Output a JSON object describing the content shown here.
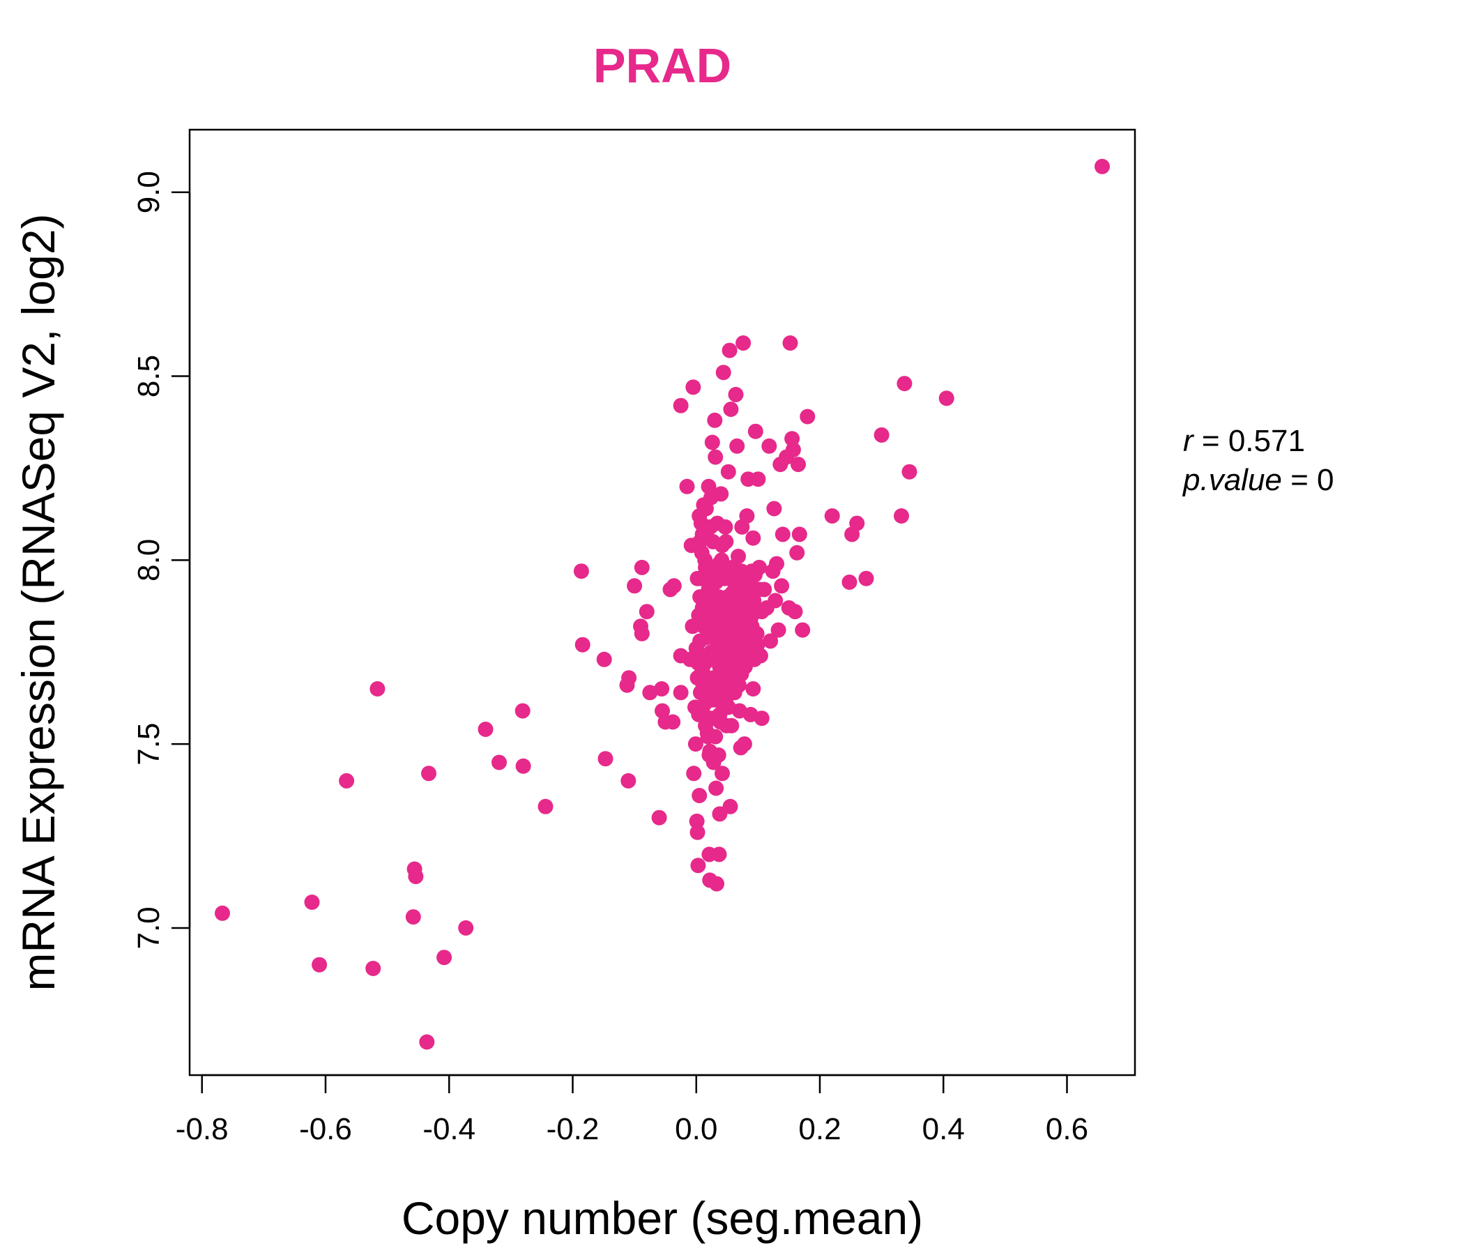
{
  "colors": {
    "accent": "#E6298A",
    "axis": "#000000",
    "background": "#FFFFFF"
  },
  "chart_data": {
    "type": "scatter",
    "title": "PRAD",
    "xlabel": "Copy number (seg.mean)",
    "ylabel": "mRNA Expression (RNASeq V2, log2)",
    "xlim": [
      -0.82,
      0.71
    ],
    "ylim": [
      6.6,
      9.17
    ],
    "xticks": [
      -0.8,
      -0.6,
      -0.4,
      -0.2,
      0.0,
      0.2,
      0.4,
      0.6
    ],
    "xtick_labels": [
      "-0.8",
      "-0.6",
      "-0.4",
      "-0.2",
      "0.0",
      "0.2",
      "0.4",
      "0.6"
    ],
    "yticks": [
      7.0,
      7.5,
      8.0,
      8.5,
      9.0
    ],
    "ytick_labels": [
      "7.0",
      "7.5",
      "8.0",
      "8.5",
      "9.0"
    ],
    "grid": false,
    "legend": "none",
    "annotations": {
      "r_var": "r",
      "r_eq": " = ",
      "r_value": "0.571",
      "p_var": "p.value",
      "p_eq": " = ",
      "p_value": "0"
    },
    "points": [
      [
        0.657,
        9.07
      ],
      [
        -0.767,
        7.04
      ],
      [
        -0.622,
        7.07
      ],
      [
        -0.61,
        6.9
      ],
      [
        -0.523,
        6.89
      ],
      [
        -0.516,
        7.65
      ],
      [
        -0.566,
        7.4
      ],
      [
        -0.456,
        7.16
      ],
      [
        -0.454,
        7.14
      ],
      [
        -0.458,
        7.03
      ],
      [
        -0.436,
        6.69
      ],
      [
        -0.433,
        7.42
      ],
      [
        -0.408,
        6.92
      ],
      [
        -0.373,
        7.0
      ],
      [
        -0.341,
        7.54
      ],
      [
        -0.319,
        7.45
      ],
      [
        -0.281,
        7.59
      ],
      [
        -0.28,
        7.44
      ],
      [
        -0.244,
        7.33
      ],
      [
        -0.186,
        7.97
      ],
      [
        -0.184,
        7.77
      ],
      [
        -0.149,
        7.73
      ],
      [
        -0.147,
        7.46
      ],
      [
        -0.112,
        7.66
      ],
      [
        -0.109,
        7.68
      ],
      [
        -0.11,
        7.4
      ],
      [
        -0.1,
        7.93
      ],
      [
        -0.088,
        7.98
      ],
      [
        -0.09,
        7.82
      ],
      [
        -0.088,
        7.8
      ],
      [
        -0.08,
        7.86
      ],
      [
        -0.075,
        7.64
      ],
      [
        -0.06,
        7.3
      ],
      [
        -0.056,
        7.65
      ],
      [
        -0.055,
        7.59
      ],
      [
        -0.05,
        7.56
      ],
      [
        -0.042,
        7.92
      ],
      [
        -0.036,
        7.93
      ],
      [
        -0.038,
        7.56
      ],
      [
        -0.025,
        7.64
      ],
      [
        -0.025,
        7.74
      ],
      [
        -0.025,
        8.42
      ],
      [
        -0.015,
        8.2
      ],
      [
        -0.005,
        8.47
      ],
      [
        -0.01,
        7.73
      ],
      [
        -0.008,
        8.04
      ],
      [
        -0.006,
        7.82
      ],
      [
        -0.004,
        7.42
      ],
      [
        -0.002,
        7.6
      ],
      [
        -0.001,
        7.5
      ],
      [
        0.001,
        7.29
      ],
      [
        0.002,
        7.26
      ],
      [
        0.003,
        7.17
      ],
      [
        0.005,
        7.36
      ],
      [
        0.006,
        7.9
      ],
      [
        0.008,
        8.1
      ],
      [
        0.01,
        7.7
      ],
      [
        0.012,
        8.15
      ],
      [
        0.014,
        8.0
      ],
      [
        0.015,
        7.55
      ],
      [
        0.016,
        7.95
      ],
      [
        0.018,
        7.85
      ],
      [
        0.02,
        8.2
      ],
      [
        0.021,
        7.2
      ],
      [
        0.022,
        7.13
      ],
      [
        0.024,
        7.75
      ],
      [
        0.026,
        8.32
      ],
      [
        0.027,
        8.05
      ],
      [
        0.028,
        7.45
      ],
      [
        0.03,
        8.38
      ],
      [
        0.031,
        8.28
      ],
      [
        0.032,
        7.38
      ],
      [
        0.033,
        7.12
      ],
      [
        0.034,
        7.65
      ],
      [
        0.036,
        7.9
      ],
      [
        0.037,
        7.2
      ],
      [
        0.038,
        7.31
      ],
      [
        0.04,
        8.18
      ],
      [
        0.041,
        7.8
      ],
      [
        0.042,
        7.42
      ],
      [
        0.044,
        8.51
      ],
      [
        0.046,
        7.6
      ],
      [
        0.048,
        8.05
      ],
      [
        0.05,
        7.72
      ],
      [
        0.052,
        8.24
      ],
      [
        0.054,
        8.57
      ],
      [
        0.055,
        7.33
      ],
      [
        0.056,
        8.41
      ],
      [
        0.058,
        7.98
      ],
      [
        0.06,
        7.87
      ],
      [
        0.062,
        7.64
      ],
      [
        0.064,
        8.45
      ],
      [
        0.066,
        8.31
      ],
      [
        0.068,
        7.77
      ],
      [
        0.07,
        7.59
      ],
      [
        0.072,
        7.49
      ],
      [
        0.074,
        8.09
      ],
      [
        0.076,
        8.59
      ],
      [
        0.078,
        7.5
      ],
      [
        0.08,
        7.93
      ],
      [
        0.082,
        8.12
      ],
      [
        0.084,
        8.22
      ],
      [
        0.086,
        7.85
      ],
      [
        0.088,
        7.58
      ],
      [
        0.09,
        7.97
      ],
      [
        0.092,
        8.06
      ],
      [
        0.094,
        7.73
      ],
      [
        0.096,
        8.35
      ],
      [
        0.098,
        7.8
      ],
      [
        0.1,
        8.22
      ],
      [
        0.102,
        7.98
      ],
      [
        0.104,
        7.74
      ],
      [
        0.106,
        7.57
      ],
      [
        0.11,
        7.92
      ],
      [
        0.114,
        7.87
      ],
      [
        0.118,
        8.31
      ],
      [
        0.12,
        7.78
      ],
      [
        0.124,
        7.97
      ],
      [
        0.126,
        8.14
      ],
      [
        0.128,
        7.89
      ],
      [
        0.13,
        7.99
      ],
      [
        0.133,
        7.81
      ],
      [
        0.136,
        8.26
      ],
      [
        0.138,
        7.93
      ],
      [
        0.14,
        8.07
      ],
      [
        0.146,
        8.28
      ],
      [
        0.15,
        7.87
      ],
      [
        0.152,
        8.59
      ],
      [
        0.155,
        8.33
      ],
      [
        0.157,
        8.3
      ],
      [
        0.16,
        7.86
      ],
      [
        0.163,
        8.02
      ],
      [
        0.165,
        8.26
      ],
      [
        0.167,
        8.07
      ],
      [
        0.172,
        7.81
      ],
      [
        0.18,
        8.39
      ],
      [
        0.22,
        8.12
      ],
      [
        0.248,
        7.94
      ],
      [
        0.252,
        8.07
      ],
      [
        0.26,
        8.1
      ],
      [
        0.275,
        7.95
      ],
      [
        0.3,
        8.34
      ],
      [
        0.332,
        8.12
      ],
      [
        0.337,
        8.48
      ],
      [
        0.345,
        8.24
      ],
      [
        0.405,
        8.44
      ],
      [
        0.005,
        8.12
      ],
      [
        0.01,
        8.07
      ],
      [
        0.015,
        7.98
      ],
      [
        0.02,
        7.92
      ],
      [
        0.025,
        7.88
      ],
      [
        0.03,
        7.83
      ],
      [
        0.035,
        7.78
      ],
      [
        0.04,
        7.73
      ],
      [
        0.045,
        7.68
      ],
      [
        0.05,
        7.63
      ],
      [
        0.012,
        7.58
      ],
      [
        0.018,
        7.53
      ],
      [
        0.022,
        7.48
      ],
      [
        0.028,
        7.62
      ],
      [
        0.033,
        7.67
      ],
      [
        0.038,
        7.71
      ],
      [
        0.043,
        7.76
      ],
      [
        0.048,
        7.81
      ],
      [
        0.053,
        7.86
      ],
      [
        0.058,
        7.91
      ],
      [
        0.063,
        7.96
      ],
      [
        0.068,
        8.01
      ],
      [
        0.073,
        7.69
      ],
      [
        0.078,
        7.74
      ],
      [
        0.083,
        7.79
      ],
      [
        0.088,
        7.84
      ],
      [
        0.008,
        7.69
      ],
      [
        0.013,
        7.74
      ],
      [
        0.017,
        7.79
      ],
      [
        0.023,
        7.84
      ],
      [
        0.027,
        7.89
      ],
      [
        0.032,
        7.94
      ],
      [
        0.037,
        7.99
      ],
      [
        0.042,
        8.04
      ],
      [
        0.047,
        8.09
      ],
      [
        0.052,
        7.6
      ],
      [
        0.057,
        7.55
      ],
      [
        0.062,
        7.7
      ],
      [
        0.067,
        7.75
      ],
      [
        0.072,
        7.8
      ],
      [
        0.077,
        7.85
      ],
      [
        0.082,
        7.9
      ],
      [
        0.087,
        7.95
      ],
      [
        0.092,
        7.65
      ],
      [
        0.097,
        7.86
      ],
      [
        0.002,
        7.95
      ],
      [
        0.004,
        7.85
      ],
      [
        0.006,
        7.78
      ],
      [
        0.009,
        8.02
      ],
      [
        0.011,
        7.66
      ],
      [
        0.014,
        7.61
      ],
      [
        0.016,
        8.14
      ],
      [
        0.019,
        7.52
      ],
      [
        0.021,
        7.47
      ],
      [
        0.024,
        8.17
      ],
      [
        0.026,
        7.57
      ],
      [
        0.029,
        7.96
      ],
      [
        0.031,
        7.52
      ],
      [
        0.034,
        8.1
      ],
      [
        0.036,
        7.47
      ],
      [
        0.039,
        7.56
      ],
      [
        0.041,
        8.0
      ],
      [
        0.044,
        7.6
      ],
      [
        0.046,
        7.95
      ],
      [
        0.049,
        7.55
      ],
      [
        0.051,
        7.9
      ],
      [
        0.054,
        7.65
      ],
      [
        0.056,
        7.8
      ],
      [
        0.059,
        7.72
      ],
      [
        0.061,
        7.84
      ],
      [
        0.065,
        7.92
      ],
      [
        0.069,
        7.66
      ],
      [
        0.071,
        7.88
      ],
      [
        0.075,
        7.96
      ],
      [
        0.079,
        7.71
      ],
      [
        0.085,
        7.93
      ],
      [
        0.089,
        7.76
      ],
      [
        0.093,
        7.89
      ],
      [
        0.095,
        7.96
      ],
      [
        0.099,
        7.77
      ],
      [
        0.003,
        7.72
      ],
      [
        0.007,
        7.64
      ],
      [
        0.013,
        7.9
      ],
      [
        0.017,
        7.67
      ],
      [
        0.023,
        8.09
      ],
      [
        0.027,
        7.81
      ],
      [
        0.033,
        7.57
      ],
      [
        0.037,
        7.86
      ],
      [
        0.043,
        7.63
      ],
      [
        0.047,
        7.77
      ],
      [
        0.053,
        7.97
      ],
      [
        0.057,
        7.69
      ],
      [
        0.063,
        7.93
      ],
      [
        0.067,
        7.84
      ],
      [
        0.073,
        7.97
      ],
      [
        0.0,
        7.76
      ],
      [
        0.002,
        7.68
      ],
      [
        0.004,
        7.58
      ],
      [
        0.006,
        8.05
      ],
      [
        0.008,
        7.95
      ],
      [
        0.01,
        7.87
      ],
      [
        0.012,
        7.82
      ],
      [
        0.014,
        7.72
      ],
      [
        0.016,
        7.68
      ],
      [
        0.018,
        7.63
      ],
      [
        0.02,
        7.98
      ],
      [
        0.022,
        7.93
      ],
      [
        0.024,
        7.83
      ],
      [
        0.026,
        7.73
      ],
      [
        0.028,
        7.68
      ],
      [
        0.03,
        7.98
      ],
      [
        0.032,
        7.88
      ],
      [
        0.034,
        7.78
      ],
      [
        0.036,
        7.68
      ],
      [
        0.038,
        7.58
      ],
      [
        0.04,
        7.88
      ],
      [
        0.042,
        7.84
      ],
      [
        0.044,
        7.79
      ],
      [
        0.046,
        7.74
      ],
      [
        0.048,
        7.64
      ],
      [
        0.05,
        7.84
      ],
      [
        0.052,
        7.74
      ],
      [
        0.054,
        7.84
      ],
      [
        0.056,
        7.9
      ],
      [
        0.058,
        7.8
      ],
      [
        0.06,
        7.75
      ],
      [
        0.062,
        7.95
      ],
      [
        0.064,
        7.83
      ],
      [
        0.066,
        7.73
      ],
      [
        0.068,
        7.93
      ],
      [
        0.07,
        7.87
      ],
      [
        0.074,
        7.83
      ],
      [
        0.078,
        7.9
      ],
      [
        0.08,
        7.8
      ],
      [
        0.084,
        7.86
      ],
      [
        0.088,
        7.92
      ],
      [
        0.09,
        7.82
      ],
      [
        0.094,
        7.8
      ],
      [
        0.102,
        7.92
      ],
      [
        0.106,
        7.86
      ]
    ]
  }
}
